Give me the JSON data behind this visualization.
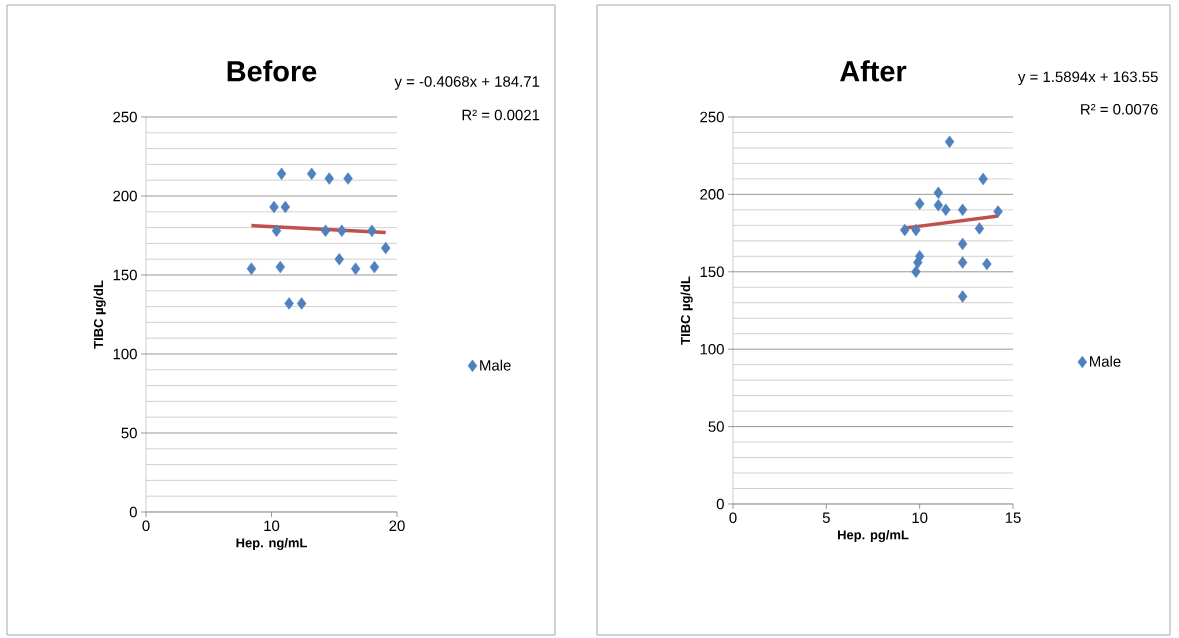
{
  "chart_data": [
    {
      "type": "scatter",
      "title": "Before",
      "xlabel": "Hep.  ng/mL",
      "ylabel": "TIBC  µg/dL",
      "xlim": [
        0,
        20
      ],
      "ylim": [
        0,
        250
      ],
      "xticks": [
        0,
        10,
        20
      ],
      "yticks": [
        0,
        50,
        100,
        150,
        200,
        250
      ],
      "grid": "y",
      "legend": "right",
      "annotations": [
        "y = -0.4068x + 184.71",
        "R² = 0.0021"
      ],
      "series": [
        {
          "name": "Male",
          "color": "#4f81bd",
          "marker": "diamond",
          "x": [
            8.4,
            10.8,
            13.2,
            14.6,
            16.1,
            10.2,
            11.1,
            10.4,
            14.3,
            15.6,
            18.0,
            19.1,
            15.4,
            16.7,
            18.2,
            10.7,
            11.4,
            12.4
          ],
          "values": [
            154,
            214,
            214,
            211,
            211,
            193,
            193,
            178,
            178,
            178,
            178,
            167,
            160,
            154,
            155,
            155,
            132,
            132
          ]
        },
        {
          "type": "line",
          "color": "#c0504d",
          "x": [
            8.4,
            19.1
          ],
          "values": [
            181.3,
            176.9
          ]
        }
      ]
    },
    {
      "type": "scatter",
      "title": "After",
      "xlabel": "Hep.  pg/mL",
      "ylabel": "TIBC  µg/dL",
      "xlim": [
        0,
        15
      ],
      "ylim": [
        0,
        250
      ],
      "xticks": [
        0,
        5,
        10,
        15
      ],
      "yticks": [
        0,
        50,
        100,
        150,
        200,
        250
      ],
      "grid": "y",
      "legend": "right",
      "annotations": [
        "y = 1.5894x + 163.55",
        "R² = 0.0076"
      ],
      "series": [
        {
          "name": "Male",
          "color": "#4f81bd",
          "marker": "diamond",
          "x": [
            9.2,
            9.8,
            10.0,
            11.0,
            11.0,
            11.4,
            11.6,
            12.3,
            13.4,
            14.2,
            13.2,
            12.3,
            12.3,
            13.6,
            12.3,
            10.0,
            9.9,
            9.8
          ],
          "values": [
            177,
            177,
            194,
            201,
            193,
            190,
            234,
            190,
            210,
            189,
            178,
            168,
            156,
            155,
            134,
            160,
            156,
            150
          ]
        },
        {
          "type": "line",
          "color": "#c0504d",
          "x": [
            9.2,
            14.2
          ],
          "values": [
            178.2,
            186.1
          ]
        }
      ]
    }
  ]
}
